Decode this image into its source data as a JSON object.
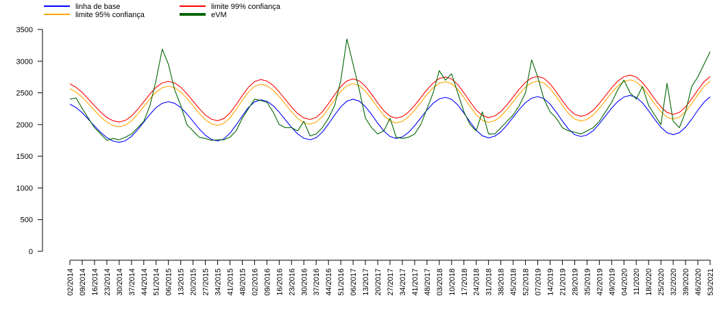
{
  "chart_data": {
    "type": "line",
    "categories": [
      "02/2014",
      null,
      "09/2014",
      null,
      "16/2014",
      null,
      "23/2014",
      null,
      "30/2014",
      null,
      "37/2014",
      null,
      "44/2014",
      null,
      "51/2014",
      null,
      "06/2015",
      null,
      "13/2015",
      null,
      "20/2015",
      null,
      "27/2015",
      null,
      "34/2015",
      null,
      "41/2015",
      null,
      "48/2015",
      null,
      "02/2016",
      null,
      "09/2016",
      null,
      "16/2016",
      null,
      "23/2016",
      null,
      "30/2016",
      null,
      "37/2016",
      null,
      "44/2016",
      null,
      "51/2016",
      null,
      "06/2017",
      null,
      "13/2017",
      null,
      "20/2017",
      null,
      "27/2017",
      null,
      "34/2017",
      null,
      "41/2017",
      null,
      "48/2017",
      null,
      "03/2018",
      null,
      "10/2018",
      null,
      "17/2018",
      null,
      "24/2018",
      null,
      "31/2018",
      null,
      "38/2018",
      null,
      "45/2018",
      null,
      "52/2018",
      null,
      "07/2019",
      null,
      "14/2019",
      null,
      "21/2019",
      null,
      "28/2019",
      null,
      "35/2019",
      null,
      "42/2019",
      null,
      "49/2019",
      null,
      "04/2020",
      null,
      "11/2020",
      null,
      "18/2020",
      null,
      "25/2020",
      null,
      "32/2020",
      null,
      "39/2020",
      null,
      "46/2020",
      null,
      "53/2021"
    ],
    "series": [
      {
        "name": "linha de base",
        "color": "#0000ff",
        "values": [
          2321,
          2267,
          2185,
          2084,
          1976,
          1875,
          1793,
          1739,
          1720,
          1744,
          1813,
          1918,
          2040,
          2162,
          2267,
          2336,
          2360,
          2336,
          2269,
          2168,
          2050,
          1932,
          1831,
          1764,
          1740,
          1773,
          1862,
          1993,
          2137,
          2268,
          2358,
          2390,
          2366,
          2298,
          2195,
          2075,
          1955,
          1852,
          1784,
          1760,
          1792,
          1880,
          2009,
          2151,
          2280,
          2368,
          2400,
          2369,
          2283,
          2159,
          2021,
          1897,
          1811,
          1780,
          1805,
          1875,
          1981,
          2105,
          2229,
          2335,
          2405,
          2430,
          2398,
          2310,
          2181,
          2039,
          1910,
          1822,
          1790,
          1815,
          1885,
          1991,
          2115,
          2239,
          2345,
          2415,
          2440,
          2409,
          2322,
          2195,
          2055,
          1928,
          1841,
          1810,
          1835,
          1905,
          2011,
          2135,
          2259,
          2365,
          2435,
          2460,
          2429,
          2343,
          2219,
          2081,
          1957,
          1871,
          1840,
          1872,
          1958,
          2085,
          2225,
          2352,
          2438
        ]
      },
      {
        "name": "limite 99% confiança",
        "color": "#ff0000",
        "values": [
          2641,
          2587,
          2505,
          2404,
          2296,
          2195,
          2113,
          2059,
          2040,
          2064,
          2133,
          2238,
          2360,
          2482,
          2587,
          2656,
          2680,
          2656,
          2589,
          2488,
          2370,
          2252,
          2151,
          2084,
          2060,
          2093,
          2182,
          2313,
          2457,
          2588,
          2678,
          2710,
          2686,
          2618,
          2515,
          2395,
          2275,
          2172,
          2104,
          2080,
          2112,
          2200,
          2329,
          2471,
          2600,
          2688,
          2720,
          2689,
          2603,
          2479,
          2341,
          2217,
          2131,
          2100,
          2125,
          2195,
          2301,
          2425,
          2549,
          2655,
          2725,
          2750,
          2718,
          2630,
          2501,
          2359,
          2230,
          2142,
          2110,
          2135,
          2205,
          2311,
          2435,
          2559,
          2665,
          2735,
          2760,
          2729,
          2642,
          2515,
          2375,
          2248,
          2161,
          2130,
          2155,
          2225,
          2331,
          2455,
          2579,
          2685,
          2755,
          2780,
          2749,
          2663,
          2539,
          2401,
          2277,
          2191,
          2160,
          2192,
          2278,
          2405,
          2545,
          2672,
          2758
        ]
      },
      {
        "name": "limite 95% confiança",
        "color": "#ffa500",
        "values": [
          2566,
          2512,
          2430,
          2329,
          2221,
          2120,
          2038,
          1984,
          1965,
          1989,
          2058,
          2163,
          2285,
          2407,
          2512,
          2581,
          2605,
          2581,
          2514,
          2413,
          2295,
          2177,
          2076,
          2009,
          1985,
          2018,
          2107,
          2238,
          2382,
          2513,
          2603,
          2635,
          2611,
          2543,
          2440,
          2320,
          2200,
          2097,
          2029,
          2005,
          2037,
          2125,
          2254,
          2396,
          2525,
          2613,
          2645,
          2614,
          2528,
          2404,
          2266,
          2142,
          2056,
          2025,
          2050,
          2120,
          2226,
          2350,
          2474,
          2580,
          2650,
          2675,
          2643,
          2555,
          2426,
          2284,
          2155,
          2067,
          2035,
          2060,
          2130,
          2236,
          2360,
          2484,
          2590,
          2660,
          2685,
          2654,
          2567,
          2440,
          2300,
          2173,
          2086,
          2055,
          2080,
          2150,
          2256,
          2380,
          2504,
          2610,
          2680,
          2705,
          2674,
          2588,
          2464,
          2326,
          2202,
          2116,
          2085,
          2117,
          2203,
          2330,
          2470,
          2597,
          2683
        ]
      },
      {
        "name": "eVM",
        "color": "#006400",
        "values": [
          2400,
          2420,
          2250,
          2100,
          1950,
          1850,
          1750,
          1780,
          1760,
          1800,
          1850,
          1950,
          2050,
          2300,
          2700,
          3190,
          2950,
          2550,
          2300,
          2000,
          1900,
          1800,
          1780,
          1750,
          1760,
          1760,
          1800,
          1900,
          2100,
          2250,
          2400,
          2380,
          2350,
          2200,
          2000,
          1950,
          1950,
          1900,
          2050,
          1820,
          1850,
          1950,
          2100,
          2300,
          2700,
          3350,
          2950,
          2550,
          2100,
          1950,
          1850,
          1900,
          2100,
          1800,
          1780,
          1800,
          1850,
          2000,
          2250,
          2500,
          2850,
          2700,
          2800,
          2500,
          2200,
          2000,
          1900,
          2200,
          1850,
          1850,
          1950,
          2050,
          2150,
          2300,
          2500,
          3020,
          2750,
          2400,
          2200,
          2100,
          1950,
          1900,
          1880,
          1850,
          1900,
          1950,
          2050,
          2200,
          2350,
          2550,
          2700,
          2500,
          2400,
          2600,
          2300,
          2150,
          2000,
          2650,
          2050,
          1950,
          2200,
          2600,
          2750,
          2950,
          3150
        ]
      }
    ],
    "ylim": [
      0,
      3500
    ],
    "yticks": [
      0,
      500,
      1000,
      1500,
      2000,
      2500,
      3000,
      3500
    ],
    "legend": "top-left"
  }
}
